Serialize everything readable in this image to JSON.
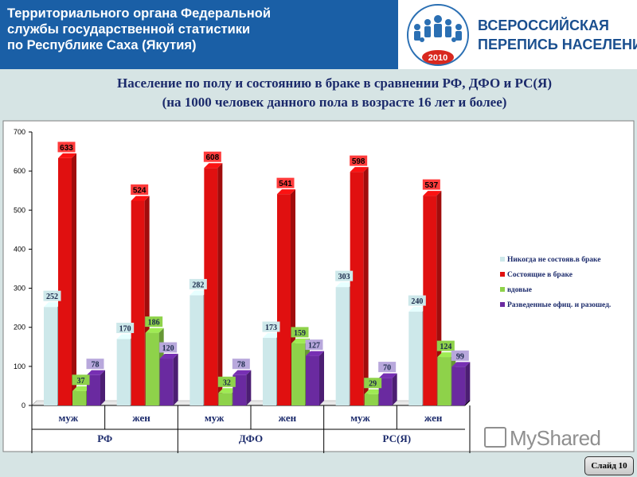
{
  "header": {
    "org_lines": [
      "Территориального органа Федеральной",
      "службы государственной статистики",
      "по Республике Саха (Якутия)"
    ],
    "census_lines": [
      "ВСЕРОССИЙСКАЯ",
      "ПЕРЕПИСЬ НАСЕЛЕНИЯ"
    ],
    "census_year": "2010"
  },
  "title_lines": [
    "Население по полу и состоянию в браке  в сравнении РФ, ДФО и РС(Я)",
    "(на 1000 человек данного пола в возрасте 16 лет и более)"
  ],
  "chart_data": {
    "type": "bar",
    "title": "Население по полу и состоянию в браке  в сравнении РФ, ДФО и РС(Я) (на 1000 человек данного пола в возрасте 16 лет и более)",
    "categories": [
      "муж",
      "жен",
      "муж",
      "жен",
      "муж",
      "жен"
    ],
    "groups": [
      "РФ",
      "ДФО",
      "РС(Я)"
    ],
    "series": [
      {
        "name": "Никогда не состояв.в браке",
        "color": "#cde8ea",
        "label_bg": "#cde8ea",
        "values": [
          252,
          170,
          282,
          173,
          303,
          240
        ]
      },
      {
        "name": "Состоящие в браке",
        "color": "#e01010",
        "label_bg": "#ff3b3b",
        "values": [
          633,
          524,
          608,
          541,
          598,
          537
        ]
      },
      {
        "name": "вдовые",
        "color": "#8ed24a",
        "label_bg": "#8ed24a",
        "values": [
          37,
          186,
          32,
          159,
          29,
          124
        ]
      },
      {
        "name": "Разведенные офиц. и разошед.",
        "color": "#6a2aa0",
        "label_bg": "#b8a8dc",
        "values": [
          78,
          120,
          78,
          127,
          70,
          99
        ]
      }
    ],
    "ylim": [
      0,
      700
    ],
    "yticks": [
      0,
      100,
      200,
      300,
      400,
      500,
      600,
      700
    ],
    "grid": false,
    "legend_position": "right"
  },
  "footer": {
    "watermark": "MyShared",
    "slide_label": "Слайд 10"
  }
}
